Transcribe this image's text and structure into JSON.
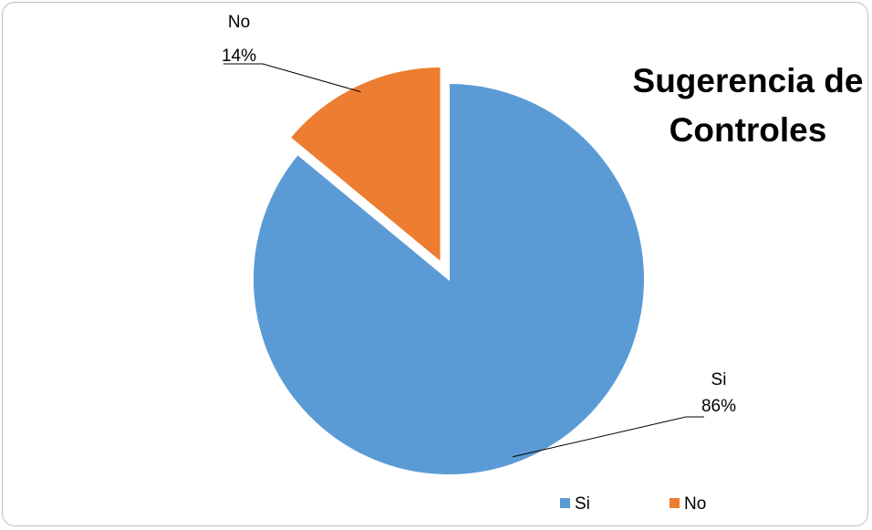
{
  "chart_data": {
    "type": "pie",
    "title_lines": [
      "Sugerencia de",
      "Controles"
    ],
    "slices": [
      {
        "name": "Si",
        "value": 86,
        "label": "86%",
        "color": "#5B9BD5"
      },
      {
        "name": "No",
        "value": 14,
        "label": "14%",
        "color": "#ED7D31"
      }
    ],
    "exploded": [
      "No"
    ],
    "legend": {
      "placement": "bottom-right",
      "items": [
        "Si",
        "No"
      ]
    }
  }
}
